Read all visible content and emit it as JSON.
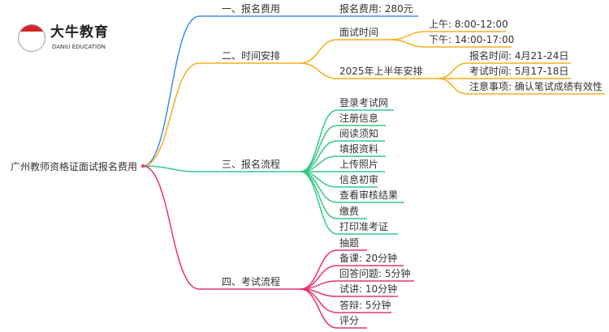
{
  "logo": {
    "cn": "大牛教育",
    "en": "DANIU EDUCATION",
    "mark": "大牛"
  },
  "root": "广州教师资格证面试报名费用",
  "colors": {
    "blue": "#3d8ef0",
    "orange": "#f5ad1e",
    "green": "#36c987",
    "pink": "#e8336e"
  },
  "branches": [
    {
      "label": "一、报名费用",
      "color": "blue",
      "children": [
        {
          "label": "报名费用: 280元"
        }
      ]
    },
    {
      "label": "二、时间安排",
      "color": "orange",
      "children": [
        {
          "label": "面试时间",
          "children": [
            {
              "label": "上午: 8:00-12:00"
            },
            {
              "label": "下午: 14:00-17:00"
            }
          ]
        },
        {
          "label": "2025年上半年安排",
          "children": [
            {
              "label": "报名时间: 4月21-24日"
            },
            {
              "label": "考试时间: 5月17-18日"
            },
            {
              "label": "注意事项: 确认笔试成绩有效性"
            }
          ]
        }
      ]
    },
    {
      "label": "三、报名流程",
      "color": "green",
      "children": [
        {
          "label": "登录考试网"
        },
        {
          "label": "注册信息"
        },
        {
          "label": "阅读须知"
        },
        {
          "label": "填报资料"
        },
        {
          "label": "上传照片"
        },
        {
          "label": "信息初审"
        },
        {
          "label": "查看审核结果"
        },
        {
          "label": "缴费"
        },
        {
          "label": "打印准考证"
        }
      ]
    },
    {
      "label": "四、考试流程",
      "color": "pink",
      "children": [
        {
          "label": "抽题"
        },
        {
          "label": "备课: 20分钟"
        },
        {
          "label": "回答问题: 5分钟"
        },
        {
          "label": "试讲: 10分钟"
        },
        {
          "label": "答辩: 5分钟"
        },
        {
          "label": "评分"
        }
      ]
    }
  ]
}
